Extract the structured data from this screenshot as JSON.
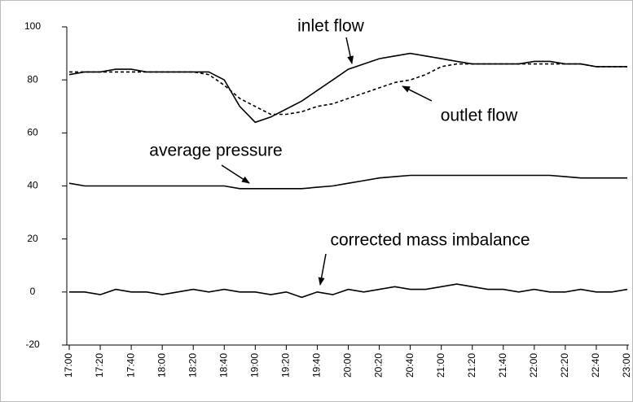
{
  "chart_data": {
    "type": "line",
    "x": [
      "17:00",
      "17:10",
      "17:20",
      "17:30",
      "17:40",
      "17:50",
      "18:00",
      "18:10",
      "18:20",
      "18:30",
      "18:40",
      "18:50",
      "19:00",
      "19:10",
      "19:20",
      "19:30",
      "19:40",
      "19:50",
      "20:00",
      "20:10",
      "20:20",
      "20:30",
      "20:40",
      "20:50",
      "21:00",
      "21:10",
      "21:20",
      "21:30",
      "21:40",
      "21:50",
      "22:00",
      "22:10",
      "22:20",
      "22:30",
      "22:40",
      "22:50",
      "23:00"
    ],
    "series": [
      {
        "name": "inlet flow",
        "color": "#000000",
        "dash": false,
        "values": [
          82,
          83,
          83,
          84,
          84,
          83,
          83,
          83,
          83,
          83,
          80,
          70,
          64,
          66,
          69,
          72,
          76,
          80,
          84,
          86,
          88,
          89,
          90,
          89,
          88,
          87,
          86,
          86,
          86,
          86,
          87,
          87,
          86,
          86,
          85,
          85,
          85
        ]
      },
      {
        "name": "outlet flow",
        "color": "#000000",
        "dash": true,
        "values": [
          83,
          83,
          83,
          83,
          83,
          83,
          83,
          83,
          83,
          82,
          78,
          73,
          70,
          67,
          67,
          68,
          70,
          71,
          73,
          75,
          77,
          79,
          80,
          82,
          85,
          86,
          86,
          86,
          86,
          86,
          86,
          86,
          86,
          86,
          85,
          85,
          85
        ]
      },
      {
        "name": "average pressure",
        "color": "#000000",
        "dash": false,
        "values": [
          41,
          40,
          40,
          40,
          40,
          40,
          40,
          40,
          40,
          40,
          40,
          39,
          39,
          39,
          39,
          39,
          39.5,
          40,
          41,
          42,
          43,
          43.5,
          44,
          44,
          44,
          44,
          44,
          44,
          44,
          44,
          44,
          44,
          43.5,
          43,
          43,
          43,
          43
        ]
      },
      {
        "name": "corrected mass imbalance",
        "color": "#000000",
        "dash": false,
        "values": [
          0,
          0,
          -1,
          1,
          0,
          0,
          -1,
          0,
          1,
          0,
          1,
          0,
          0,
          -1,
          0,
          -2,
          0,
          -1,
          1,
          0,
          1,
          2,
          1,
          1,
          2,
          3,
          2,
          1,
          1,
          0,
          1,
          0,
          0,
          1,
          0,
          0,
          1
        ]
      }
    ],
    "annotations": [
      "inlet flow",
      "outlet flow",
      "average pressure",
      "corrected mass imbalance"
    ],
    "xlim": [
      "17:00",
      "23:00"
    ],
    "xticks": [
      "17:00",
      "17:20",
      "17:40",
      "18:00",
      "18:20",
      "18:40",
      "19:00",
      "19:20",
      "19:40",
      "20:00",
      "20:20",
      "20:40",
      "21:00",
      "21:20",
      "21:40",
      "22:00",
      "22:20",
      "22:40",
      "23:00"
    ],
    "ylim": [
      -20,
      100
    ],
    "yticks": [
      -20,
      0,
      20,
      40,
      60,
      80,
      100
    ],
    "grid": false
  }
}
